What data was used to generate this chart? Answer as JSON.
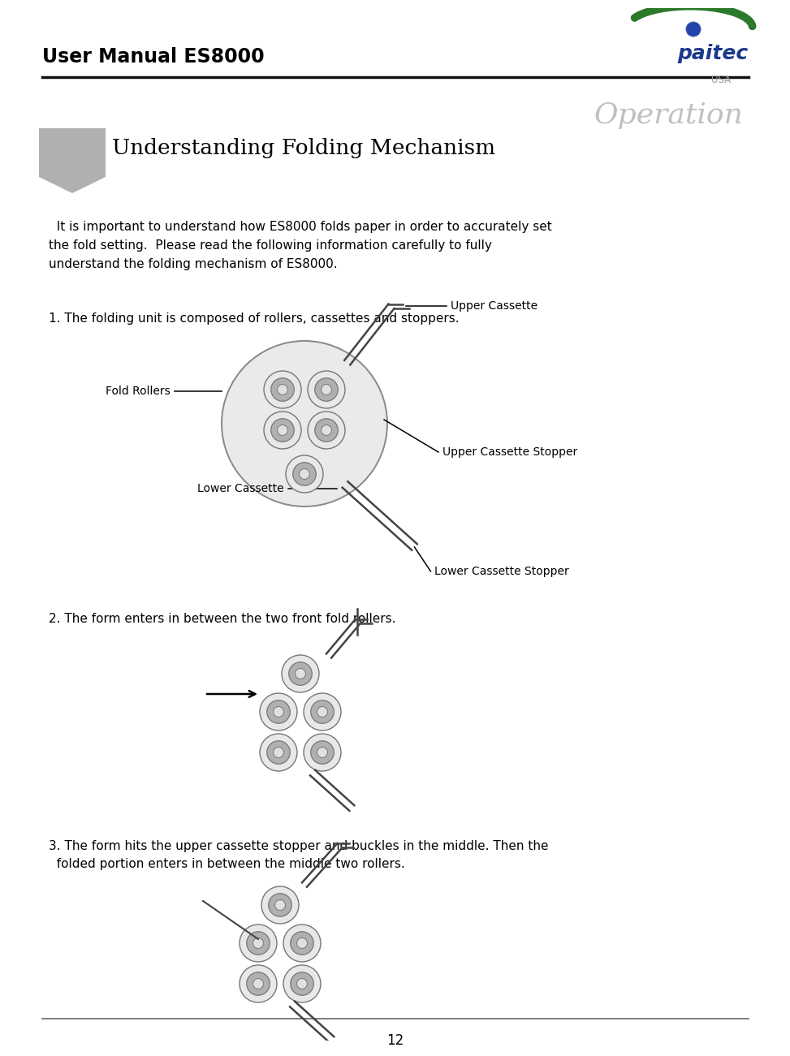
{
  "title": "User Manual ES8000",
  "operation_text": "Operation",
  "section_title": "Understanding Folding Mechanism",
  "intro_text": "  It is important to understand how ES8000 folds paper in order to accurately set\nthe fold setting.  Please read the following information carefully to fully\nunderstand the folding mechanism of ES8000.",
  "point1_text": "1. The folding unit is composed of rollers, cassettes and stoppers.",
  "point2_text": "2. The form enters in between the two front fold rollers.",
  "point3_text": "3. The form hits the upper cassette stopper and buckles in the middle. Then the\n  folded portion enters in between the middle two rollers.",
  "page_number": "12",
  "bg_color": "#ffffff",
  "text_color": "#000000",
  "bookmark_color": "#aaaaaa",
  "paitec_blue": "#1a3a8a",
  "paitec_green": "#2d7a2d",
  "roller_outer": "#e0e0e0",
  "roller_mid": "#aaaaaa",
  "roller_inner": "#d8d8d8",
  "cassette_color": "#555555",
  "label_fontsize": 10,
  "title_fontsize": 17,
  "section_fontsize": 19,
  "body_fontsize": 11,
  "page_fontsize": 12
}
